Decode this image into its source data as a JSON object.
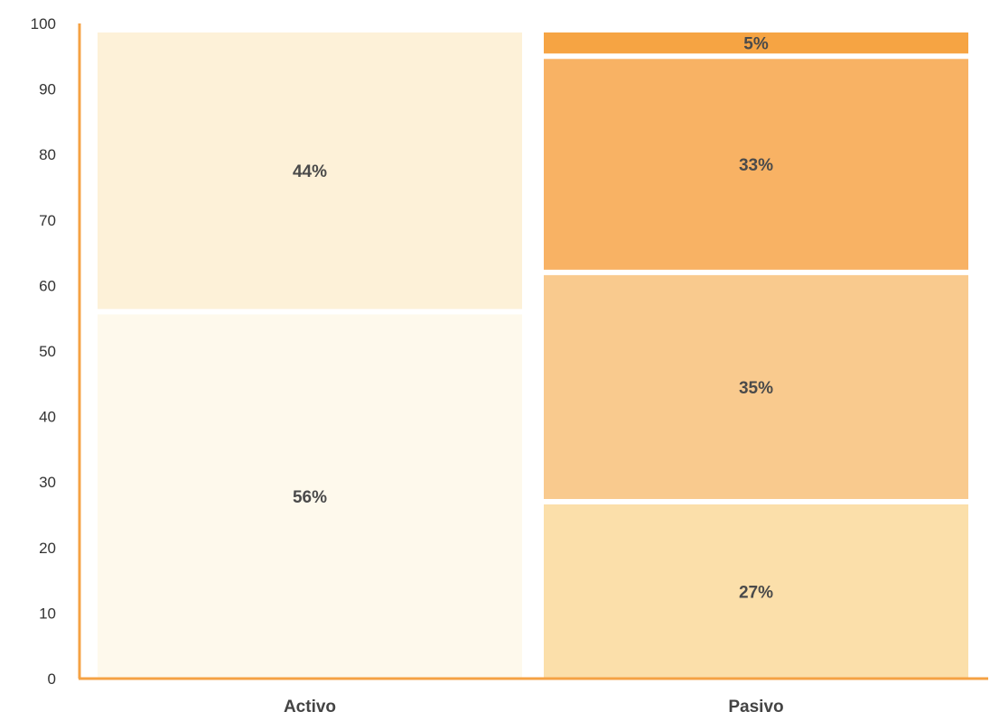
{
  "chart_data": {
    "type": "bar",
    "stacked": true,
    "categories": [
      "Activo",
      "Pasivo"
    ],
    "stacks": [
      {
        "category": "Activo",
        "segments": [
          {
            "value": 56,
            "label": "56%",
            "color": "#FEF9EC"
          },
          {
            "value": 44,
            "label": "44%",
            "color": "#FDF1D8"
          }
        ]
      },
      {
        "category": "Pasivo",
        "segments": [
          {
            "value": 27,
            "label": "27%",
            "color": "#FBDFAA"
          },
          {
            "value": 35,
            "label": "35%",
            "color": "#F9CA8E"
          },
          {
            "value": 33,
            "label": "33%",
            "color": "#F8B264"
          },
          {
            "value": 5,
            "label": "5%",
            "color": "#F6A443"
          }
        ]
      }
    ],
    "yticks": [
      "0",
      "10",
      "20",
      "30",
      "40",
      "50",
      "60",
      "70",
      "80",
      "90",
      "100"
    ],
    "ylim": [
      0,
      100
    ],
    "axis_color": "#F5A244",
    "grid": false,
    "title": "",
    "xlabel": "",
    "ylabel": ""
  }
}
